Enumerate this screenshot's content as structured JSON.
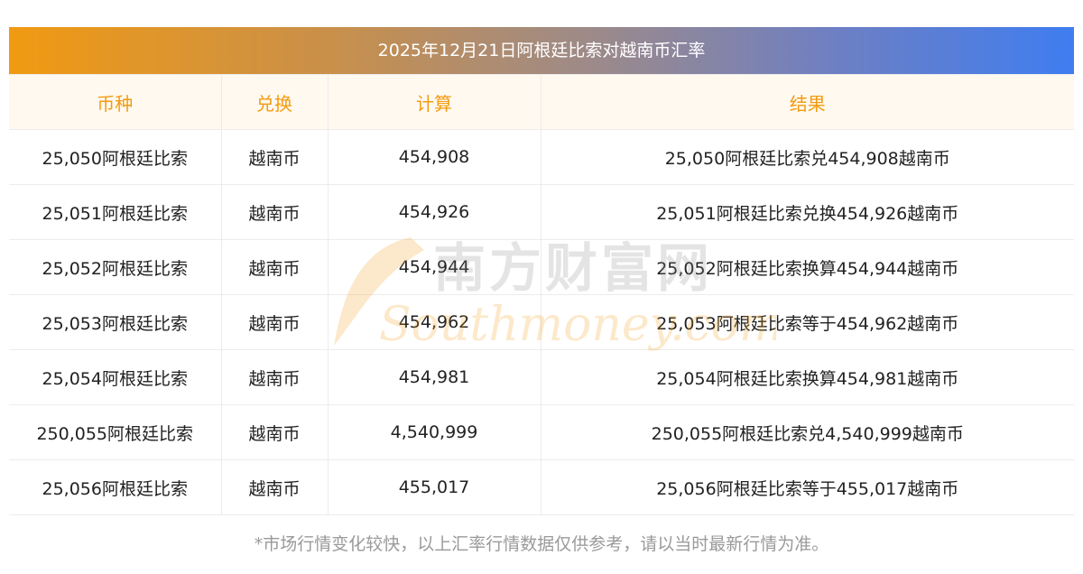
{
  "title": "2025年12月21日阿根廷比索对越南币汇率",
  "table": {
    "headers": [
      "币种",
      "兑换",
      "计算",
      "结果"
    ],
    "rows": [
      [
        "25,050阿根廷比索",
        "越南币",
        "454,908",
        "25,050阿根廷比索兑454,908越南币"
      ],
      [
        "25,051阿根廷比索",
        "越南币",
        "454,926",
        "25,051阿根廷比索兑换454,926越南币"
      ],
      [
        "25,052阿根廷比索",
        "越南币",
        "454,944",
        "25,052阿根廷比索换算454,944越南币"
      ],
      [
        "25,053阿根廷比索",
        "越南币",
        "454,962",
        "25,053阿根廷比索等于454,962越南币"
      ],
      [
        "25,054阿根廷比索",
        "越南币",
        "454,981",
        "25,054阿根廷比索换算454,981越南币"
      ],
      [
        "250,055阿根廷比索",
        "越南币",
        "4,540,999",
        "250,055阿根廷比索兑4,540,999越南币"
      ],
      [
        "25,056阿根廷比索",
        "越南币",
        "455,017",
        "25,056阿根廷比索等于455,017越南币"
      ]
    ]
  },
  "watermark": {
    "cn": "南方财富网",
    "en": "Southmoney.com"
  },
  "footnote": "*市场行情变化较快，以上汇率行情数据仅供参考，请以当时最新行情为准。",
  "colors": {
    "header_text": "#f39c12",
    "header_bg": "#fff9f0",
    "title_gradient_start": "#f19a12",
    "title_gradient_end": "#3f7df0"
  }
}
